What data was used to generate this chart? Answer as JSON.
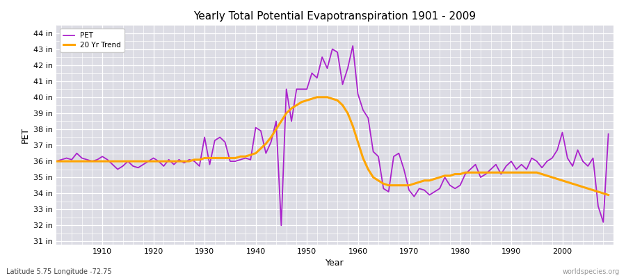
{
  "title": "Yearly Total Potential Evapotranspiration 1901 - 2009",
  "ylabel": "PET",
  "xlabel": "Year",
  "subtitle": "Latitude 5.75 Longitude -72.75",
  "watermark": "worldspecies.org",
  "pet_color": "#AA22CC",
  "trend_color": "#FFA500",
  "background_color": "#DCDCE4",
  "plot_bg_color": "#DCDCE4",
  "grid_color": "#FFFFFF",
  "ylim": [
    30.8,
    44.5
  ],
  "yticks": [
    31,
    32,
    33,
    34,
    35,
    36,
    37,
    38,
    39,
    40,
    41,
    42,
    43,
    44
  ],
  "ytick_labels": [
    "31 in",
    "32 in",
    "33 in",
    "34 in",
    "35 in",
    "36 in",
    "37 in",
    "38 in",
    "39 in",
    "40 in",
    "41 in",
    "42 in",
    "43 in",
    "44 in"
  ],
  "xticks": [
    1910,
    1920,
    1930,
    1940,
    1950,
    1960,
    1970,
    1980,
    1990,
    2000
  ],
  "years": [
    1901,
    1902,
    1903,
    1904,
    1905,
    1906,
    1907,
    1908,
    1909,
    1910,
    1911,
    1912,
    1913,
    1914,
    1915,
    1916,
    1917,
    1918,
    1919,
    1920,
    1921,
    1922,
    1923,
    1924,
    1925,
    1926,
    1927,
    1928,
    1929,
    1930,
    1931,
    1932,
    1933,
    1934,
    1935,
    1936,
    1937,
    1938,
    1939,
    1940,
    1941,
    1942,
    1943,
    1944,
    1945,
    1946,
    1947,
    1948,
    1949,
    1950,
    1951,
    1952,
    1953,
    1954,
    1955,
    1956,
    1957,
    1958,
    1959,
    1960,
    1961,
    1962,
    1963,
    1964,
    1965,
    1966,
    1967,
    1968,
    1969,
    1970,
    1971,
    1972,
    1973,
    1974,
    1975,
    1976,
    1977,
    1978,
    1979,
    1980,
    1981,
    1982,
    1983,
    1984,
    1985,
    1986,
    1987,
    1988,
    1989,
    1990,
    1991,
    1992,
    1993,
    1994,
    1995,
    1996,
    1997,
    1998,
    1999,
    2000,
    2001,
    2002,
    2003,
    2004,
    2005,
    2006,
    2007,
    2008,
    2009
  ],
  "pet_values": [
    36.0,
    36.1,
    36.2,
    36.1,
    36.5,
    36.2,
    36.1,
    36.0,
    36.1,
    36.3,
    36.1,
    35.8,
    35.5,
    35.7,
    36.0,
    35.7,
    35.6,
    35.8,
    36.0,
    36.2,
    36.0,
    35.7,
    36.1,
    35.8,
    36.1,
    35.9,
    36.1,
    36.0,
    35.7,
    37.5,
    35.8,
    37.3,
    37.5,
    37.2,
    36.0,
    36.0,
    36.1,
    36.2,
    36.1,
    38.1,
    37.9,
    36.5,
    37.2,
    38.5,
    32.0,
    40.5,
    38.5,
    40.5,
    40.5,
    40.5,
    41.5,
    41.2,
    42.5,
    41.8,
    43.0,
    42.8,
    40.8,
    41.8,
    43.2,
    40.2,
    39.2,
    38.7,
    36.6,
    36.3,
    34.3,
    34.1,
    36.3,
    36.5,
    35.5,
    34.2,
    33.8,
    34.3,
    34.2,
    33.9,
    34.1,
    34.3,
    35.0,
    34.5,
    34.3,
    34.5,
    35.2,
    35.5,
    35.8,
    35.0,
    35.2,
    35.5,
    35.8,
    35.2,
    35.7,
    36.0,
    35.5,
    35.8,
    35.5,
    36.2,
    36.0,
    35.6,
    36.0,
    36.2,
    36.7,
    37.8,
    36.2,
    35.7,
    36.7,
    36.0,
    35.7,
    36.2,
    33.2,
    32.2,
    37.7
  ],
  "trend_values": [
    36.0,
    36.0,
    36.0,
    36.0,
    36.0,
    36.0,
    36.0,
    36.0,
    36.0,
    36.0,
    36.0,
    36.0,
    36.0,
    36.0,
    36.0,
    36.0,
    36.0,
    36.0,
    36.0,
    36.0,
    36.0,
    36.0,
    36.0,
    36.0,
    36.0,
    36.0,
    36.0,
    36.1,
    36.1,
    36.2,
    36.2,
    36.2,
    36.2,
    36.2,
    36.2,
    36.2,
    36.3,
    36.3,
    36.4,
    36.5,
    36.8,
    37.1,
    37.5,
    38.0,
    38.5,
    39.0,
    39.3,
    39.5,
    39.7,
    39.8,
    39.9,
    40.0,
    40.0,
    40.0,
    39.9,
    39.8,
    39.5,
    39.0,
    38.2,
    37.2,
    36.2,
    35.5,
    35.0,
    34.8,
    34.6,
    34.5,
    34.5,
    34.5,
    34.5,
    34.5,
    34.6,
    34.7,
    34.8,
    34.8,
    34.9,
    35.0,
    35.1,
    35.1,
    35.2,
    35.2,
    35.3,
    35.3,
    35.3,
    35.3,
    35.3,
    35.3,
    35.3,
    35.3,
    35.3,
    35.3,
    35.3,
    35.3,
    35.3,
    35.3,
    35.3,
    35.2,
    35.1,
    35.0,
    34.9,
    34.8,
    34.7,
    34.6,
    34.5,
    34.4,
    34.3,
    34.2,
    34.1,
    34.0,
    33.9
  ]
}
